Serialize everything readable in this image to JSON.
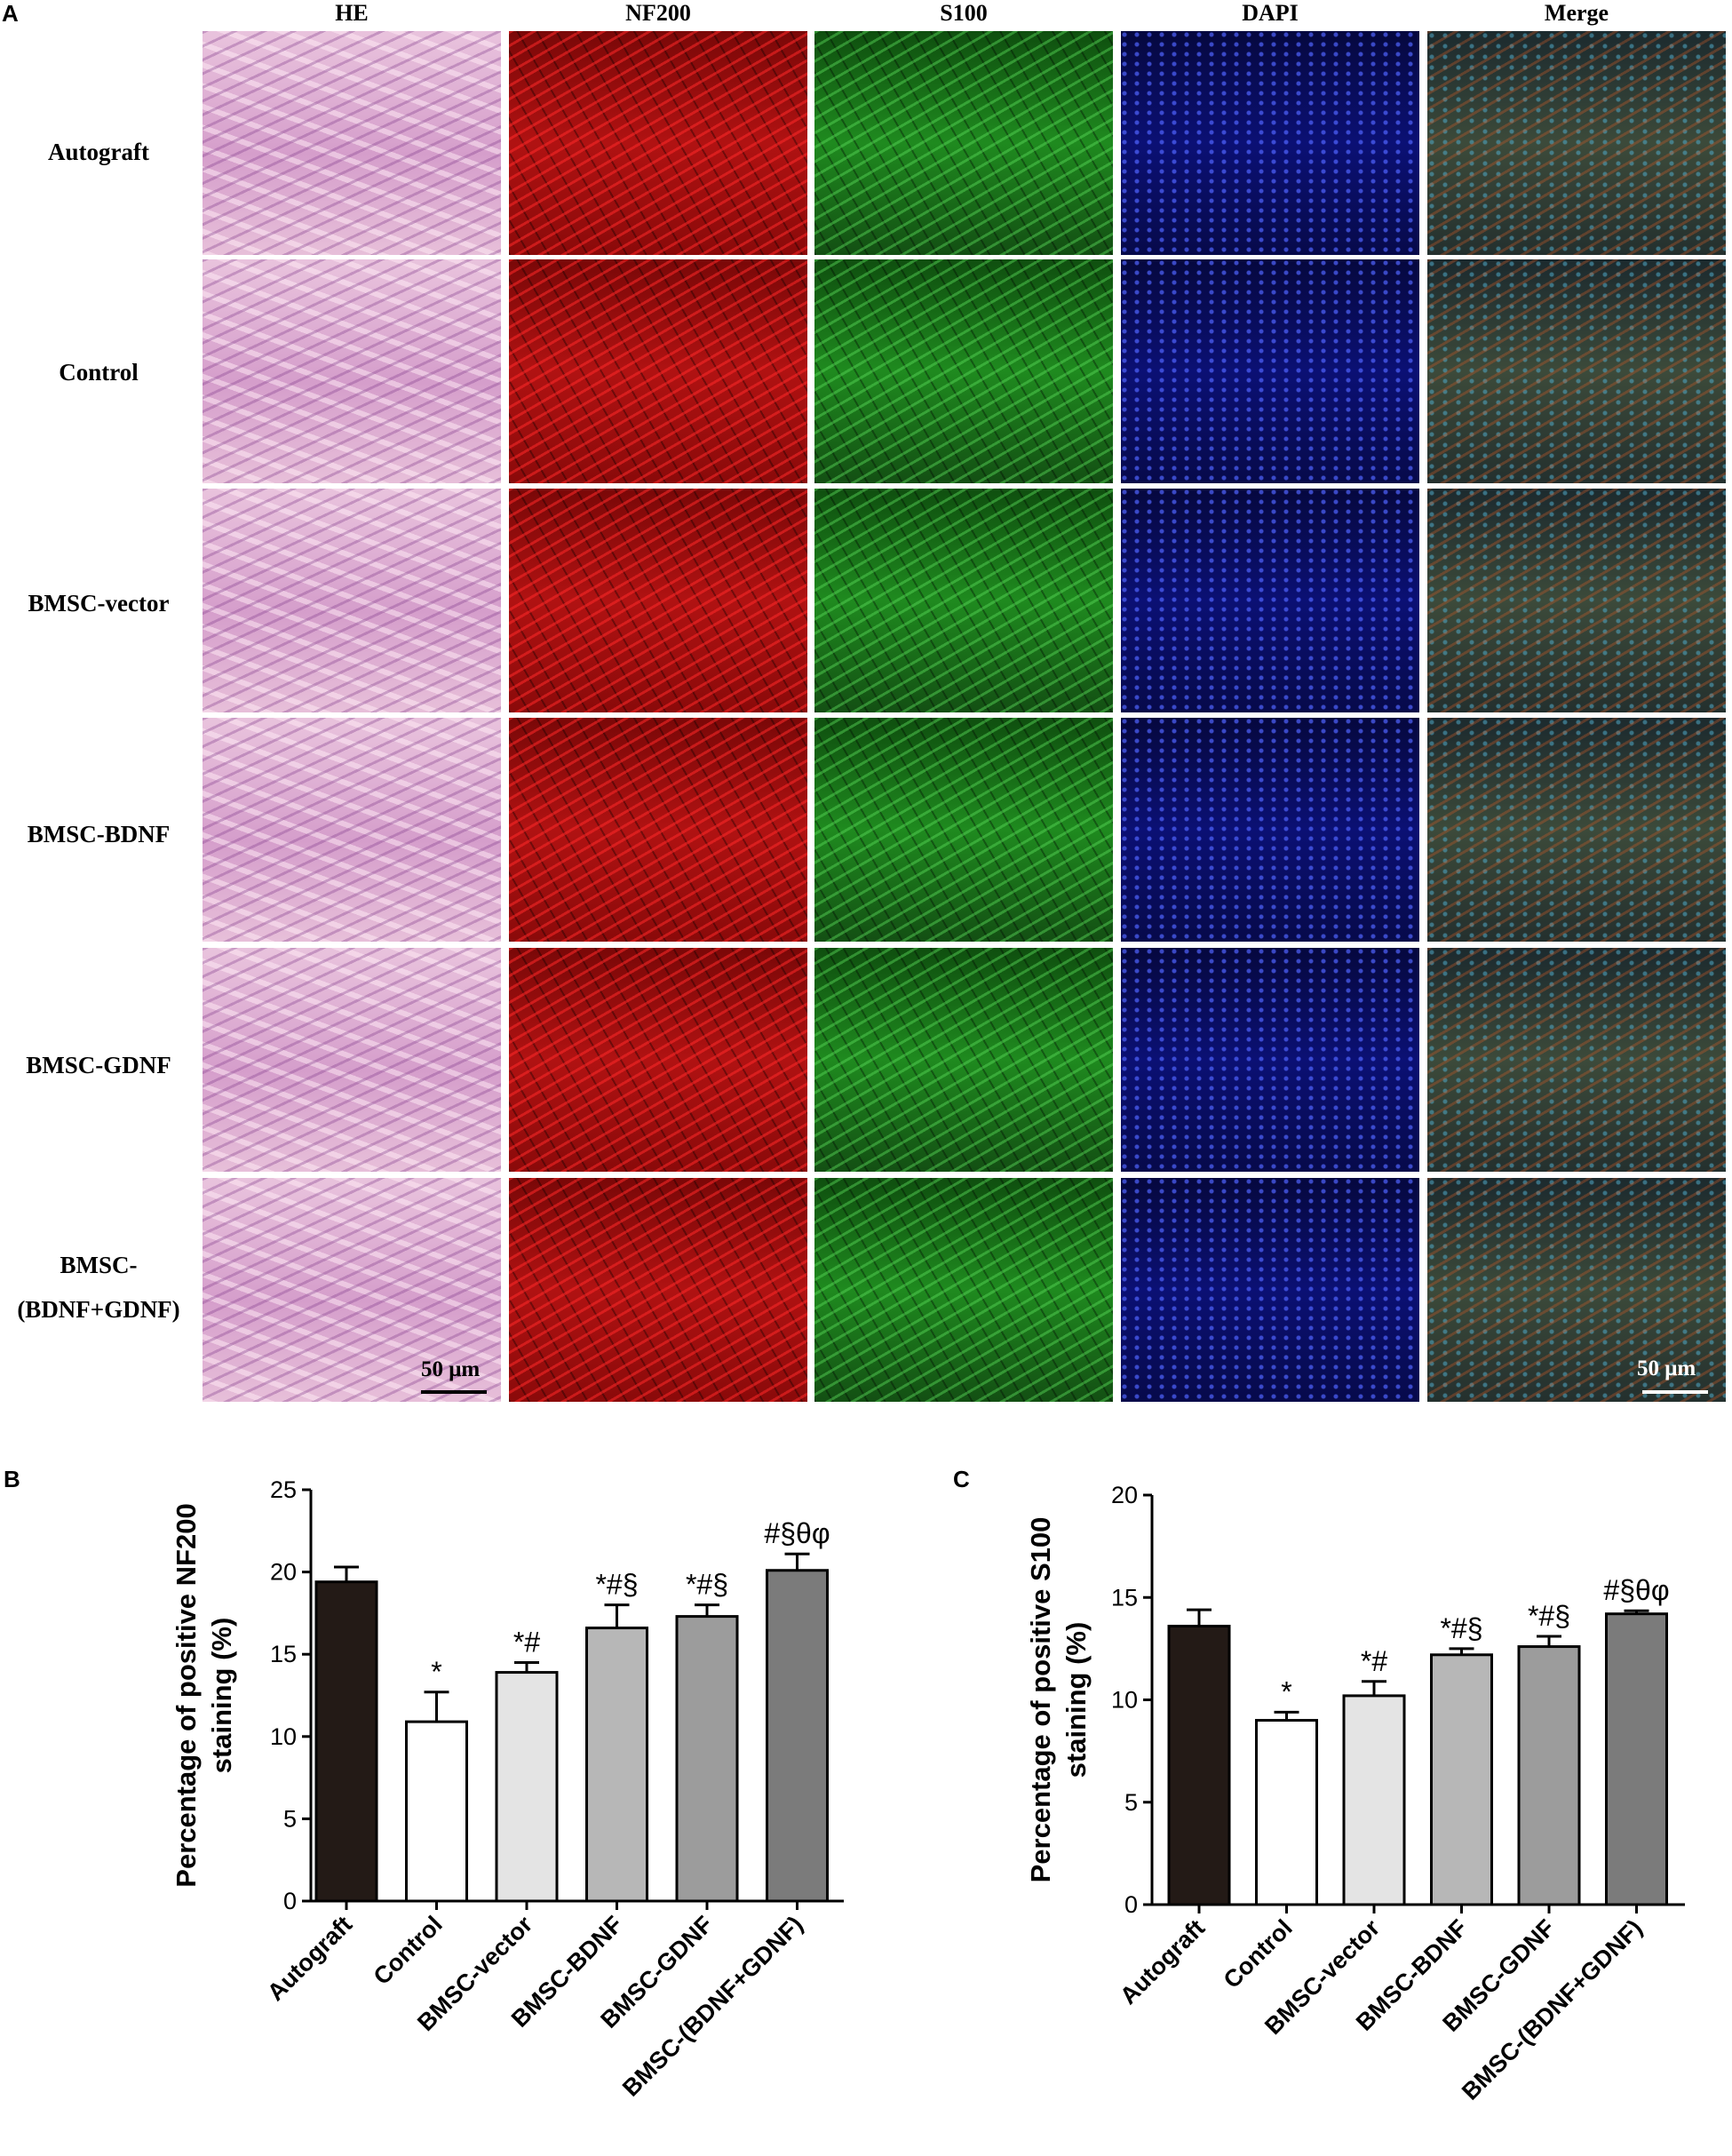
{
  "panel_a": {
    "letter": "A",
    "columns": [
      "HE",
      "NF200",
      "S100",
      "DAPI",
      "Merge"
    ],
    "rows": [
      [
        "Autograft"
      ],
      [
        "Control"
      ],
      [
        "BMSC-vector"
      ],
      [
        "BMSC-BDNF"
      ],
      [
        "BMSC-GDNF"
      ],
      [
        "BMSC-",
        "(BDNF+GDNF)"
      ]
    ],
    "scale_bar_left": "50 μm",
    "scale_bar_right": "50 μm",
    "stain_colors": {
      "HE": "#d9a7cf",
      "NF200": "#9a0c0c",
      "S100": "#1c7a1c",
      "DAPI": "#0b0f6e",
      "Merge": "#2e3a3e"
    }
  },
  "chart_data": [
    {
      "panel": "B",
      "type": "bar",
      "ylabel_lines": [
        "Percentage of positive NF200",
        "staining (%)"
      ],
      "ylim": [
        0,
        25
      ],
      "yticks": [
        0,
        5,
        10,
        15,
        20,
        25
      ],
      "categories": [
        "Autograft",
        "Control",
        "BMSC-vector",
        "BMSC-BDNF",
        "BMSC-GDNF",
        "BMSC-(BDNF+GDNF)"
      ],
      "values": [
        19.4,
        10.9,
        13.9,
        16.6,
        17.3,
        20.1
      ],
      "errors": [
        0.9,
        1.8,
        0.6,
        1.4,
        0.7,
        1.0
      ],
      "annotations": [
        "",
        "*",
        "*#",
        "*#§",
        "*#§",
        "#§θφ"
      ],
      "bar_colors": [
        "#231a16",
        "#ffffff",
        "#e4e4e4",
        "#b7b7b7",
        "#9c9c9c",
        "#7b7b7b"
      ]
    },
    {
      "panel": "C",
      "type": "bar",
      "ylabel_lines": [
        "Percentage of positive S100",
        "staining (%)"
      ],
      "ylim": [
        0,
        20
      ],
      "yticks": [
        0,
        5,
        10,
        15,
        20
      ],
      "categories": [
        "Autograft",
        "Control",
        "BMSC-vector",
        "BMSC-BDNF",
        "BMSC-GDNF",
        "BMSC-(BDNF+GDNF)"
      ],
      "values": [
        13.6,
        9.0,
        10.2,
        12.2,
        12.6,
        14.2
      ],
      "errors": [
        0.8,
        0.4,
        0.7,
        0.3,
        0.5,
        0.15
      ],
      "annotations": [
        "",
        "*",
        "*#",
        "*#§",
        "*#§",
        "#§θφ"
      ],
      "bar_colors": [
        "#231a16",
        "#ffffff",
        "#e4e4e4",
        "#b7b7b7",
        "#9c9c9c",
        "#7b7b7b"
      ]
    }
  ]
}
